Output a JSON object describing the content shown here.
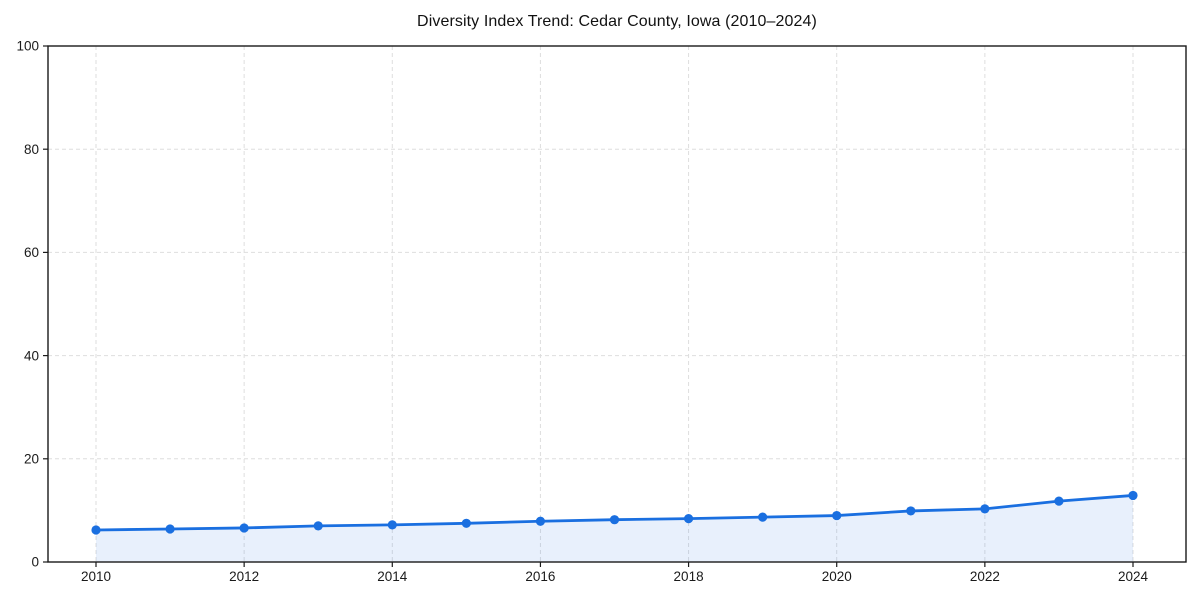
{
  "chart_data": {
    "type": "line",
    "title": "Diversity Index Trend: Cedar County, Iowa (2010–2024)",
    "xlabel": "",
    "ylabel": "",
    "x": [
      2010,
      2011,
      2012,
      2013,
      2014,
      2015,
      2016,
      2017,
      2018,
      2019,
      2020,
      2021,
      2022,
      2023,
      2024
    ],
    "series": [
      {
        "name": "Diversity Index",
        "values": [
          6.2,
          6.4,
          6.6,
          7.0,
          7.2,
          7.5,
          7.9,
          8.2,
          8.4,
          8.7,
          9.0,
          9.9,
          10.3,
          11.8,
          12.9
        ]
      }
    ],
    "ylim": [
      0,
      100
    ],
    "yticks": [
      0,
      20,
      40,
      60,
      80,
      100
    ],
    "xticks": [
      2010,
      2012,
      2014,
      2016,
      2018,
      2020,
      2022,
      2024
    ],
    "grid": "dashed",
    "legend": "none",
    "area_fill_under_line": true,
    "markers": "circle",
    "colors": {
      "line": "#1a6fe0",
      "marker": "#1a6fe0",
      "area": "#1a6fe0",
      "area_opacity": 0.1,
      "grid": "#dedede",
      "axis": "#1a1a1a",
      "text": "#1a1a1a",
      "background": "#ffffff"
    }
  }
}
